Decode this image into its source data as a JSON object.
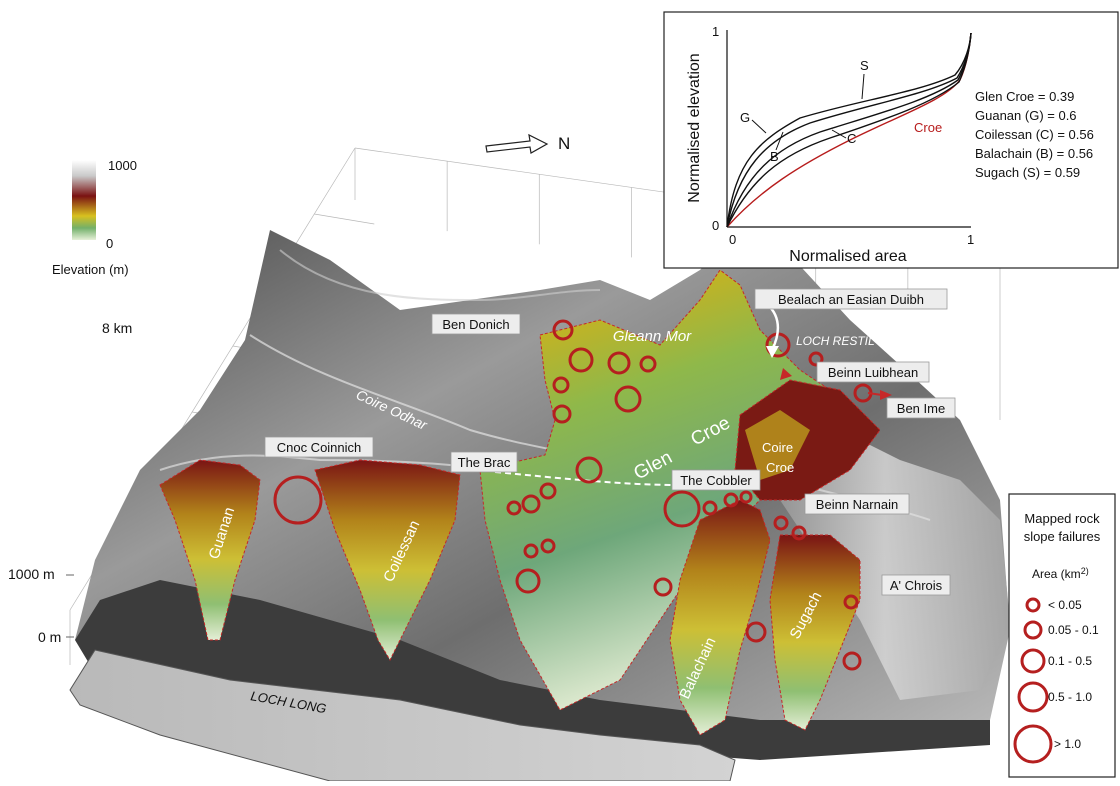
{
  "north_label": "N",
  "colorbar": {
    "max_label": "1000",
    "min_label": "0",
    "title": "Elevation (m)",
    "stops": [
      "#ffffff",
      "#7a1010",
      "#d8bf20",
      "#6fb36a",
      "#e8f1da"
    ]
  },
  "axis": {
    "label_8km": "8 km",
    "label_1000m": "1000 m",
    "label_0m": "0 m"
  },
  "places": {
    "ben_donich": "Ben Donich",
    "gleann_mor": "Gleann Mor",
    "bealach": "Bealach an Easian Duibh",
    "loch_restil": "LOCH RESTIL",
    "beinn_luibhean": "Beinn Luibhean",
    "ben_ime": "Ben Ime",
    "coire_odhar": "Coire Odhar",
    "cnoc_coinnich": "Cnoc Coinnich",
    "the_brac": "The Brac",
    "glen": "Glen",
    "croe": "Croe",
    "coire_croe_1": "Coire",
    "coire_croe_2": "Croe",
    "the_cobbler": "The Cobbler",
    "beinn_narnain": "Beinn Narnain",
    "a_chrois": "A' Chrois",
    "guanan": "Guanan",
    "coilessan": "Coilessan",
    "balachain": "Balachain",
    "sugach": "Sugach",
    "loch_long": "LOCH  LONG"
  },
  "inset": {
    "ylabel": "Normalised elevation",
    "xlabel": "Normalised area",
    "ticks": {
      "y0": "0",
      "y1": "1",
      "x0": "0",
      "x1": "1"
    },
    "curve_labels": {
      "G": "G",
      "B": "B",
      "C": "C",
      "S": "S",
      "Croe": "Croe"
    },
    "hypsometric_integrals": [
      "Glen Croe = 0.39",
      "Guanan (G) = 0.6",
      "Coilessan (C) = 0.56",
      "Balachain (B) = 0.56",
      "Sugach (S) = 0.59"
    ]
  },
  "legend": {
    "title_1": "Mapped rock",
    "title_2": "slope failures",
    "area_label": "Area (km",
    "area_sup": "2)",
    "items": [
      "< 0.05",
      "0.05 - 0.1",
      "0.1 - 0.5",
      "0.5 - 1.0",
      "> 1.0"
    ],
    "circle_color": "#b51f1f"
  }
}
